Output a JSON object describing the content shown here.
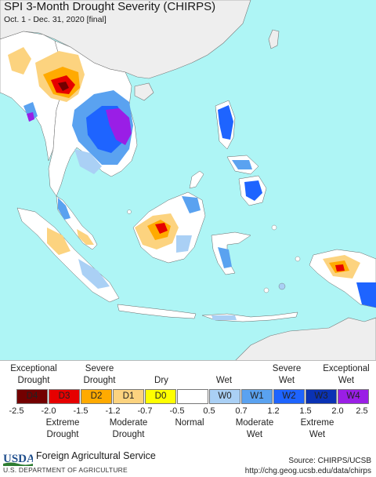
{
  "title": "SPI 3-Month Drought Severity (CHIRPS)",
  "subtitle": "Oct. 1 - Dec. 31, 2020 [final]",
  "colors": {
    "ocean": "#aef5f5",
    "land_other": "#eeeeee",
    "land_normal": "#ffffff",
    "D4": "#730000",
    "D3": "#e60000",
    "D2": "#ffaa00",
    "D1": "#fcd37f",
    "D0": "#ffff00",
    "Normal": "#ffffff",
    "W0": "#aad0f5",
    "W1": "#5aa2f0",
    "W2": "#1e64ff",
    "W3": "#0a32b4",
    "W4": "#9a1ee6"
  },
  "legend": {
    "top_labels": {
      "exceptional_drought": [
        "Exceptional",
        "Drought"
      ],
      "severe_drought": [
        "Severe",
        "Drought"
      ],
      "dry": "Dry",
      "wet": "Wet",
      "severe_wet": [
        "Severe",
        "Wet"
      ],
      "exceptional_wet": [
        "Exceptional",
        "Wet"
      ]
    },
    "categories": [
      "D4",
      "D3",
      "D2",
      "D1",
      "D0",
      "",
      "W0",
      "W1",
      "W2",
      "W3",
      "W4"
    ],
    "ticks": [
      "-2.5",
      "-2.0",
      "-1.5",
      "-1.2",
      "-0.7",
      "-0.5",
      "0.5",
      "0.7",
      "1.2",
      "1.5",
      "2.0",
      "2.5"
    ],
    "bottom_labels": {
      "extreme_drought": [
        "Extreme",
        "Drought"
      ],
      "moderate_drought": [
        "Moderate",
        "Drought"
      ],
      "normal": "Normal",
      "moderate_wet": [
        "Moderate",
        "Wet"
      ],
      "extreme_wet": [
        "Extreme",
        "Wet"
      ]
    }
  },
  "footer": {
    "logo_text": "USDA",
    "agency": "Foreign Agricultural Service",
    "department": "U.S. DEPARTMENT OF AGRICULTURE",
    "source": "Source: CHIRPS/UCSB",
    "url": "http://chg.geog.ucsb.edu/data/chirps"
  }
}
